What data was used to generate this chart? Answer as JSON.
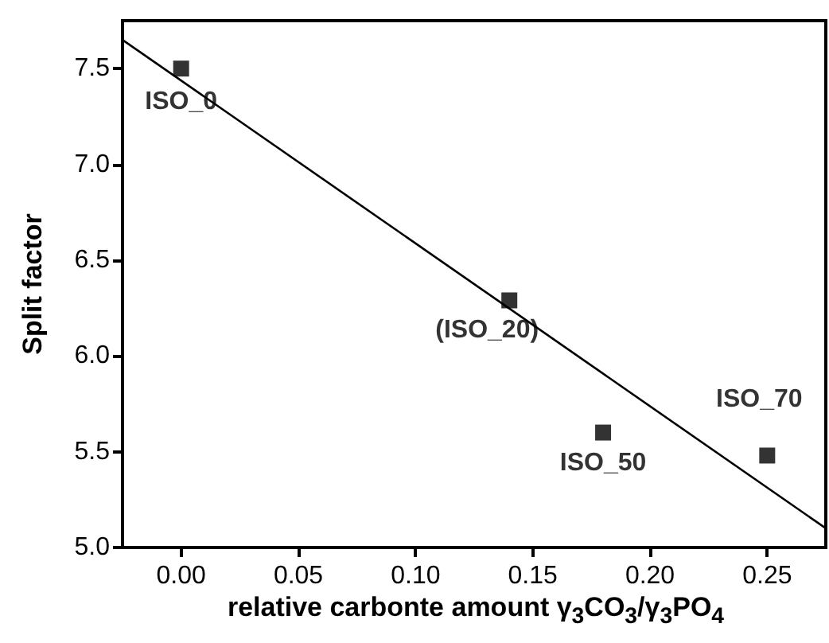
{
  "chart_data": {
    "type": "scatter",
    "xlabel": "relative carbonte amount γ$_{3}$CO$_{3}$/γ$_{3}$PO$_{4}$",
    "ylabel": "Split factor",
    "xlim": [
      -0.025,
      0.275
    ],
    "xticks": [
      {
        "value": 0,
        "label": "0.00"
      },
      {
        "value": 0.05,
        "label": "0.05"
      },
      {
        "value": 0.1,
        "label": "0.10"
      },
      {
        "value": 0.15,
        "label": "0.15"
      },
      {
        "value": 0.2,
        "label": "0.20"
      },
      {
        "value": 0.25,
        "label": "0.25"
      }
    ],
    "ylim": [
      5,
      7.75
    ],
    "yticks": [
      {
        "value": 5,
        "label": "5.0"
      },
      {
        "value": 5.5,
        "label": "5.5"
      },
      {
        "value": 6,
        "label": "6.0"
      },
      {
        "value": 6.5,
        "label": "6.5"
      },
      {
        "value": 7,
        "label": "7.0"
      },
      {
        "value": 7.5,
        "label": "7.5"
      }
    ],
    "series": [
      {
        "color": "#000000",
        "marker": "square",
        "x": [
          0,
          0.14,
          0.18,
          0.25
        ],
        "values": [
          7.5,
          6.29,
          5.6,
          5.48
        ]
      },
      {
        "type": "line",
        "color": "#000000",
        "marker": "none",
        "line_style": "solid",
        "x": [
          -0.025,
          0.275
        ],
        "values": [
          7.65,
          5.1
        ]
      }
    ],
    "annotations": [
      {
        "text": "ISO_0",
        "x": 0,
        "y": 7.5
      },
      {
        "text": "(ISO_20)",
        "x": 0.14,
        "y": 6.29
      },
      {
        "text": "ISO_50",
        "x": 0.18,
        "y": 5.6
      },
      {
        "text": "ISO_70",
        "x": 0.25,
        "y": 5.48
      }
    ]
  }
}
